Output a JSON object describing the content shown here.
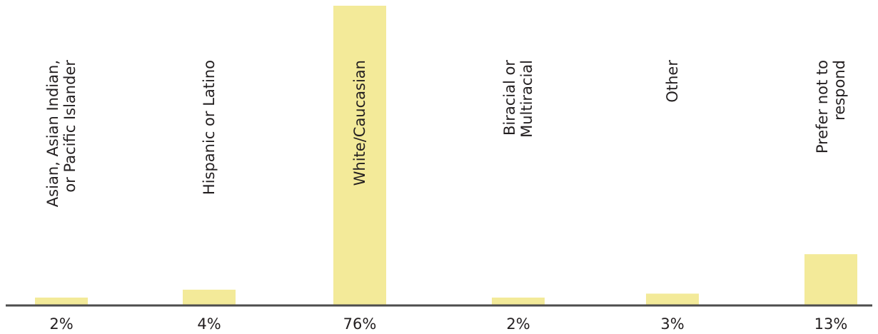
{
  "chart_data": {
    "type": "bar",
    "title": "",
    "xlabel": "",
    "ylabel": "",
    "ylim": [
      0,
      76
    ],
    "grid": false,
    "legend": "none",
    "bar_color": "#f3ea99",
    "axis_color": "#4d4d4d",
    "text_color": "#231f20",
    "categories": [
      [
        "Asian, Asian Indian,",
        "or Pacific Islander"
      ],
      [
        "Hispanic or Latino"
      ],
      [
        "White/Caucasian"
      ],
      [
        "Biracial or",
        "Multiracial"
      ],
      [
        "Other"
      ],
      [
        "Prefer not to",
        "respond"
      ]
    ],
    "values": [
      2,
      4,
      76,
      2,
      3,
      13
    ],
    "value_labels": [
      "2%",
      "4%",
      "76%",
      "2%",
      "3%",
      "13%"
    ]
  }
}
